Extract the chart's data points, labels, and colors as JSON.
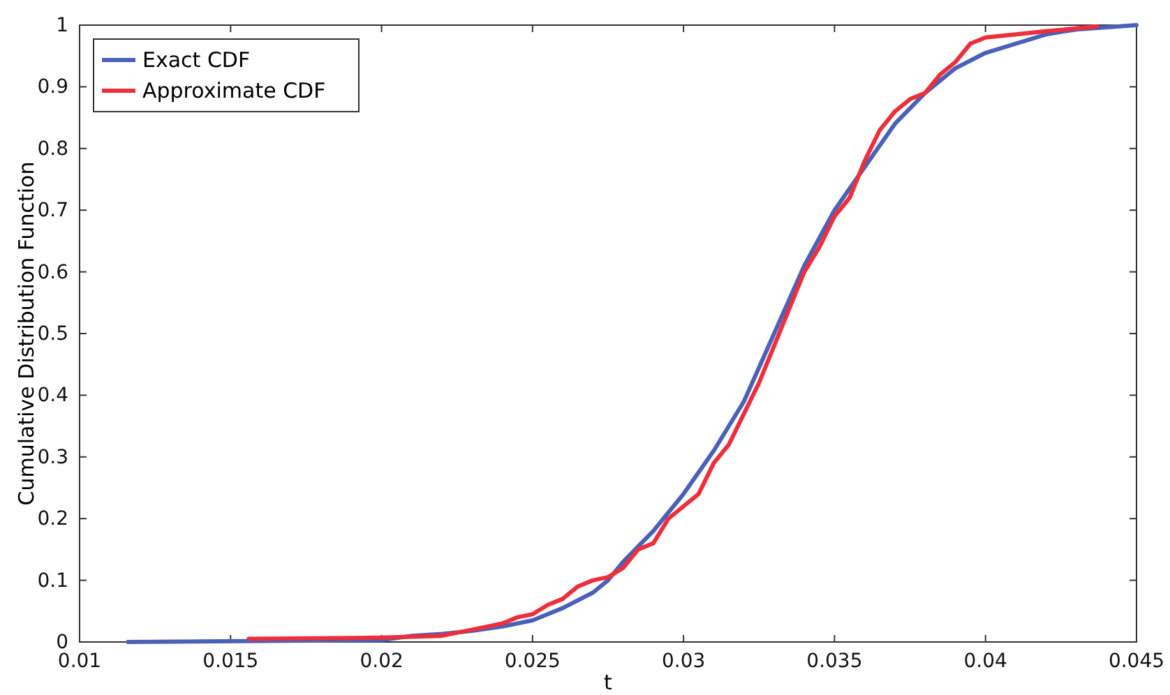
{
  "chart_data": {
    "type": "line",
    "xlabel": "t",
    "ylabel": "Cumulative Distribution Function",
    "xlim": [
      0.01,
      0.045
    ],
    "xticks": [
      0.01,
      0.015,
      0.02,
      0.025,
      0.03,
      0.035,
      0.04,
      0.045
    ],
    "ylim": [
      0,
      1
    ],
    "yticks": [
      0,
      0.1,
      0.2,
      0.3,
      0.4,
      0.5,
      0.6,
      0.7,
      0.8,
      0.9,
      1
    ],
    "legend": "top left",
    "grid": false,
    "marker": "none",
    "line_style": "solid",
    "series": [
      {
        "name": "Exact CDF",
        "color": "#4a61b8",
        "x": [
          0.0116,
          0.02,
          0.021,
          0.022,
          0.023,
          0.024,
          0.025,
          0.026,
          0.027,
          0.0275,
          0.028,
          0.029,
          0.03,
          0.031,
          0.032,
          0.033,
          0.034,
          0.035,
          0.036,
          0.037,
          0.038,
          0.039,
          0.04,
          0.041,
          0.042,
          0.043,
          0.045
        ],
        "values": [
          0,
          0.003,
          0.01,
          0.013,
          0.018,
          0.025,
          0.035,
          0.055,
          0.08,
          0.1,
          0.13,
          0.18,
          0.24,
          0.31,
          0.39,
          0.5,
          0.61,
          0.7,
          0.77,
          0.84,
          0.89,
          0.93,
          0.955,
          0.97,
          0.985,
          0.993,
          1
        ]
      },
      {
        "name": "Approximate CDF",
        "color": "#ee2e3a",
        "x": [
          0.0156,
          0.02,
          0.022,
          0.023,
          0.024,
          0.0245,
          0.025,
          0.0255,
          0.026,
          0.0265,
          0.027,
          0.0275,
          0.028,
          0.0285,
          0.029,
          0.0295,
          0.03,
          0.0305,
          0.031,
          0.0315,
          0.032,
          0.0325,
          0.033,
          0.0335,
          0.034,
          0.0345,
          0.035,
          0.0355,
          0.036,
          0.0365,
          0.037,
          0.0375,
          0.038,
          0.0385,
          0.039,
          0.0395,
          0.04,
          0.041,
          0.042,
          0.0437
        ],
        "values": [
          0.005,
          0.007,
          0.01,
          0.02,
          0.03,
          0.04,
          0.045,
          0.06,
          0.07,
          0.09,
          0.1,
          0.105,
          0.12,
          0.15,
          0.16,
          0.2,
          0.22,
          0.24,
          0.29,
          0.32,
          0.37,
          0.42,
          0.48,
          0.54,
          0.6,
          0.64,
          0.69,
          0.72,
          0.78,
          0.83,
          0.86,
          0.88,
          0.89,
          0.92,
          0.94,
          0.97,
          0.98,
          0.985,
          0.99,
          0.998
        ]
      }
    ]
  }
}
